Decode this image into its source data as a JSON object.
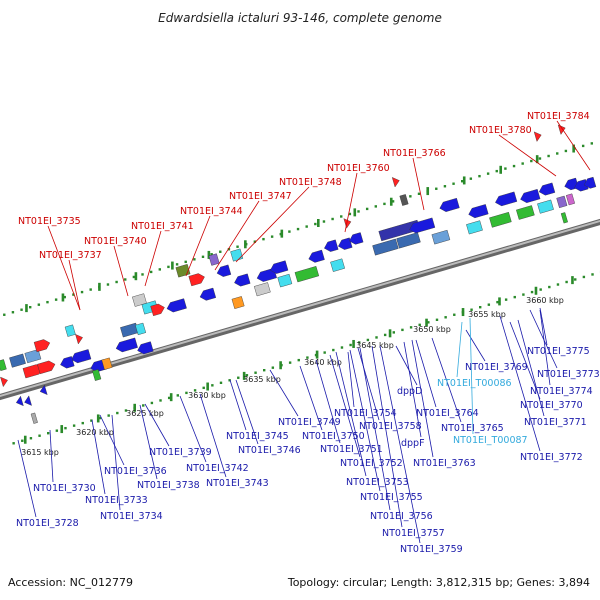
{
  "title": "Edwardsiella ictaluri 93-146, complete genome",
  "accession": "Accession: NC_012779",
  "topology": "Topology: circular; Length: 3,812,315 bp; Genes: 3,894",
  "colors": {
    "forward_label": "#cc0000",
    "reverse_label": "#1a1aaa",
    "rna_label": "#33aadd",
    "backbone": "#888888",
    "dots": "#2a8a2a"
  },
  "ticks": [
    "3615 kbp",
    "3620 kbp",
    "3625 kbp",
    "3630 kbp",
    "3635 kbp",
    "3640 kbp",
    "3645 kbp",
    "3650 kbp",
    "3655 kbp",
    "3660 kbp"
  ],
  "labels_top": [
    "NT01EI_3735",
    "NT01EI_3737",
    "NT01EI_3740",
    "NT01EI_3741",
    "NT01EI_3744",
    "NT01EI_3747",
    "NT01EI_3748",
    "NT01EI_3760",
    "NT01EI_3766",
    "NT01EI_3780",
    "NT01EI_3784"
  ],
  "labels_bottom": [
    "NT01EI_3728",
    "NT01EI_3730",
    "NT01EI_3733",
    "NT01EI_3734",
    "NT01EI_3736",
    "NT01EI_3738",
    "NT01EI_3739",
    "NT01EI_3742",
    "NT01EI_3743",
    "NT01EI_3745",
    "NT01EI_3746",
    "NT01EI_3749",
    "NT01EI_3750",
    "NT01EI_3751",
    "NT01EI_3752",
    "NT01EI_3753",
    "NT01EI_3754",
    "NT01EI_3755",
    "NT01EI_3756",
    "NT01EI_3757",
    "NT01EI_3758",
    "NT01EI_3759",
    "dppD",
    "dppF",
    "NT01EI_3763",
    "NT01EI_3764",
    "NT01EI_3765",
    "NT01EI_3769",
    "NT01EI_T00086",
    "NT01EI_T00087",
    "NT01EI_3770",
    "NT01EI_3771",
    "NT01EI_3772",
    "NT01EI_3773",
    "NT01EI_3774",
    "NT01EI_3775"
  ],
  "rna_labels": [
    "NT01EI_T00086",
    "NT01EI_T00087"
  ]
}
